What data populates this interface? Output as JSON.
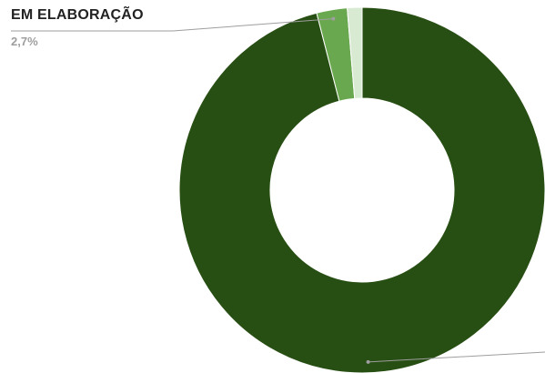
{
  "chart_data": {
    "type": "pie",
    "donut": true,
    "series": [
      {
        "label": "",
        "value": 96.0,
        "color": "#274e13"
      },
      {
        "label": "EM ELABORAÇÃO",
        "value": 2.7,
        "color": "#6aa84f"
      },
      {
        "label": "",
        "value": 1.3,
        "color": "#d9ead3"
      }
    ],
    "callouts": [
      {
        "label": "EM ELABORAÇÃO",
        "value_text": "2,7%"
      }
    ]
  }
}
